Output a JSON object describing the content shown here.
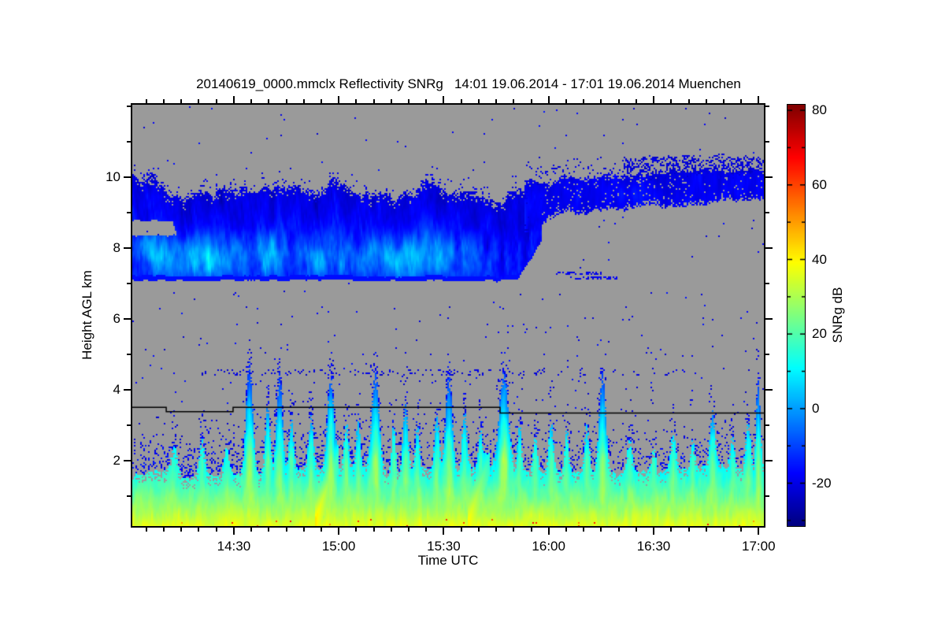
{
  "chart_data": {
    "type": "heatmap",
    "title": "20140619_0000.mmclx Reflectivity SNRg   14:01 19.06.2014 - 17:01 19.06.2014 Muenchen",
    "xlabel": "Time UTC",
    "ylabel": "Height AGL km",
    "site": "Muenchen",
    "time_start": "14:01 19.06.2014",
    "time_end": "17:01 19.06.2014",
    "x_axis": {
      "range_minutes": [
        0,
        180.5
      ],
      "minor_tick_step_minutes": 5,
      "major_ticks": [
        {
          "minute": 29,
          "label": "14:30"
        },
        {
          "minute": 59,
          "label": "15:00"
        },
        {
          "minute": 89,
          "label": "15:30"
        },
        {
          "minute": 119,
          "label": "16:00"
        },
        {
          "minute": 149,
          "label": "16:30"
        },
        {
          "minute": 179,
          "label": "17:00"
        }
      ]
    },
    "y_axis": {
      "range_km": [
        0.15,
        12.04
      ],
      "major_ticks": [
        {
          "km": 2,
          "label": "2"
        },
        {
          "km": 4,
          "label": "4"
        },
        {
          "km": 6,
          "label": "6"
        },
        {
          "km": 8,
          "label": "8"
        },
        {
          "km": 10,
          "label": "10"
        }
      ],
      "minor_ticks_km": [
        1,
        3,
        5,
        7,
        9,
        11,
        12
      ]
    },
    "colorbar": {
      "label": "SNRg dB",
      "colormap": "jet",
      "range_db": [
        -31.5,
        81.5
      ],
      "major_ticks": [
        {
          "db": 80,
          "label": "80"
        },
        {
          "db": 60,
          "label": "60"
        },
        {
          "db": 40,
          "label": "40"
        },
        {
          "db": 20,
          "label": "20"
        },
        {
          "db": 0,
          "label": "0"
        },
        {
          "db": -20,
          "label": "-20"
        }
      ],
      "minor_ticks_db": [
        70,
        50,
        30,
        10,
        -10,
        -30
      ]
    },
    "no_signal_color": "#9a9a9a",
    "scene": {
      "melting_line_segments": [
        [
          0,
          9.7,
          3.5
        ],
        [
          9.7,
          28.8,
          3.38
        ],
        [
          28.8,
          105.1,
          3.5
        ],
        [
          105.1,
          180.5,
          3.34
        ]
      ],
      "upper_cloud": {
        "t_range": [
          0,
          117
        ],
        "base_km": 7.08,
        "top_km_mean": 9.55,
        "top_km_var": 0.75,
        "early_top_boost": 0.012,
        "pinch_start": 110,
        "core_peak_db": 14,
        "top_db": -22,
        "notch": {
          "t_max": 11.5,
          "h_range": [
            8.32,
            8.72
          ]
        }
      },
      "upper_band": {
        "t_range": [
          112,
          180.5
        ],
        "h_low": 8.92,
        "h_high": 9.9,
        "slope_low": 0.006,
        "slope_high": 0.004,
        "mean_db": -19,
        "speckle_strip": {
          "t_start": 140,
          "h_range": [
            9.9,
            10.55
          ],
          "fill_prob": 0.45
        }
      },
      "speck_row": {
        "t_range": [
          20,
          158
        ],
        "h_km": 4.47,
        "h_halfwidth": 0.09,
        "prob": 0.12,
        "db": -18
      },
      "dash_streaks": [
        [
          121,
          134,
          7.3
        ],
        [
          125,
          139,
          7.14
        ]
      ],
      "background_speck_prob": 0.003,
      "boundary_layer": {
        "top_km_base": 1.58,
        "top_km_var": 0.3,
        "surface_db": 38.5,
        "lapse_db_per_km": 15.5,
        "streaks": [
          {
            "t0": 52,
            "t1": 59,
            "h0": 0.25,
            "slope": 0.28,
            "db_boost": 12
          },
          {
            "t0": 96,
            "t1": 102,
            "h0": 0.3,
            "slope": 0.3,
            "db_boost": 8
          }
        ],
        "plumes": [
          [
            12.0,
            2.4,
            8,
            1.5
          ],
          [
            20.0,
            2.6,
            9,
            1.3
          ],
          [
            27.0,
            2.5,
            8,
            1.2
          ],
          [
            33.5,
            4.8,
            21,
            1.6
          ],
          [
            38.7,
            3.6,
            14,
            1.2
          ],
          [
            42.1,
            4.5,
            17,
            1.4
          ],
          [
            45.5,
            3.2,
            12,
            1.1
          ],
          [
            51.1,
            3.3,
            12,
            1.2
          ],
          [
            56.7,
            4.4,
            20,
            1.6
          ],
          [
            61.2,
            3.1,
            12,
            1.1
          ],
          [
            64.6,
            3.2,
            12,
            1.0
          ],
          [
            69.5,
            4.5,
            19,
            1.8
          ],
          [
            74.7,
            3.0,
            12,
            1.0
          ],
          [
            78.1,
            3.6,
            13,
            1.2
          ],
          [
            81.5,
            3.0,
            11,
            1.0
          ],
          [
            87.1,
            3.3,
            13,
            1.2
          ],
          [
            90.5,
            4.4,
            19,
            1.6
          ],
          [
            95.0,
            3.4,
            12,
            1.2
          ],
          [
            99.5,
            2.9,
            11,
            1.0
          ],
          [
            106.2,
            4.5,
            21,
            2.2
          ],
          [
            110.7,
            3.1,
            12,
            1.0
          ],
          [
            115.2,
            2.7,
            10,
            1.0
          ],
          [
            119.7,
            3.1,
            12,
            1.2
          ],
          [
            124.2,
            2.9,
            11,
            1.0
          ],
          [
            129.9,
            3.0,
            12,
            1.2
          ],
          [
            134.4,
            4.5,
            18,
            1.6
          ],
          [
            142.2,
            2.6,
            10,
            1.2
          ],
          [
            149.0,
            2.4,
            9,
            1.0
          ],
          [
            154.6,
            2.8,
            11,
            1.2
          ],
          [
            160.2,
            2.6,
            10,
            1.0
          ],
          [
            165.9,
            3.4,
            13,
            1.3
          ],
          [
            171.5,
            2.7,
            10,
            1.0
          ],
          [
            176.0,
            3.1,
            12,
            1.2
          ],
          [
            178.9,
            4.3,
            16,
            1.0
          ]
        ]
      }
    }
  }
}
